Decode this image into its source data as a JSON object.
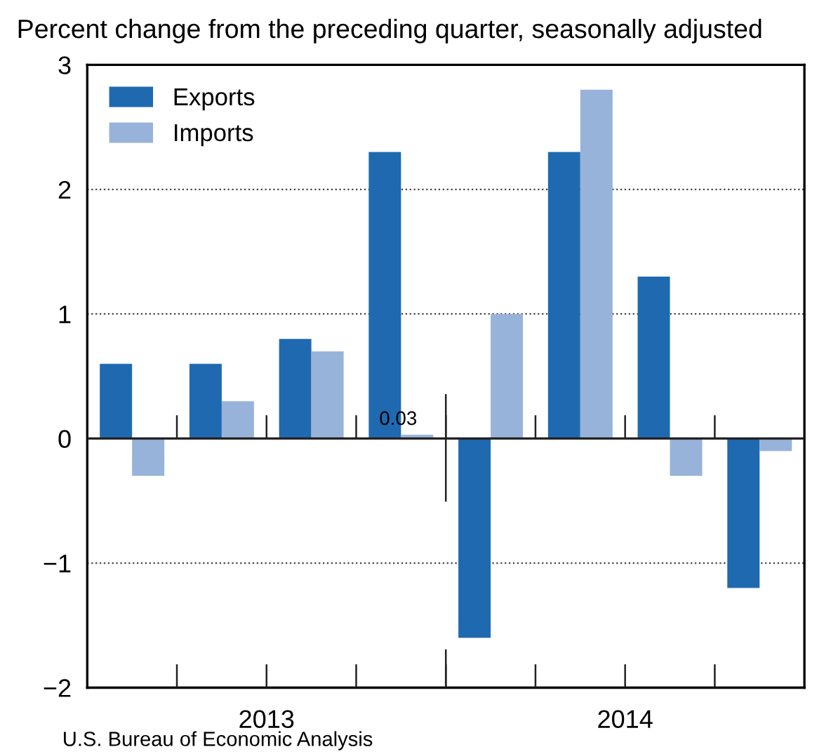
{
  "chart_data": {
    "type": "bar",
    "title": "Percent change from the preceding quarter, seasonally adjusted",
    "categories": [
      null,
      null,
      null,
      null,
      null,
      null,
      null,
      null
    ],
    "series": [
      {
        "name": "Exports",
        "color": "#1f69b0",
        "values": [
          0.6,
          0.6,
          0.8,
          2.3,
          -1.6,
          2.3,
          1.3,
          -1.2
        ]
      },
      {
        "name": "Imports",
        "color": "#98b3d9",
        "values": [
          -0.3,
          0.3,
          0.7,
          0.03,
          1.0,
          2.8,
          -0.3,
          -0.1
        ],
        "value_labels": [
          null,
          null,
          null,
          "0.03",
          null,
          null,
          null,
          null
        ]
      }
    ],
    "ylim": [
      -2,
      3
    ],
    "yticks": [
      {
        "value": -2,
        "label": "−2"
      },
      {
        "value": -1,
        "label": "−1"
      },
      0,
      1,
      2,
      3
    ],
    "grid": "y",
    "legend": "top left",
    "annotations": [
      "2013",
      "2014",
      "U.S. Bureau of Economic Analysis"
    ]
  }
}
